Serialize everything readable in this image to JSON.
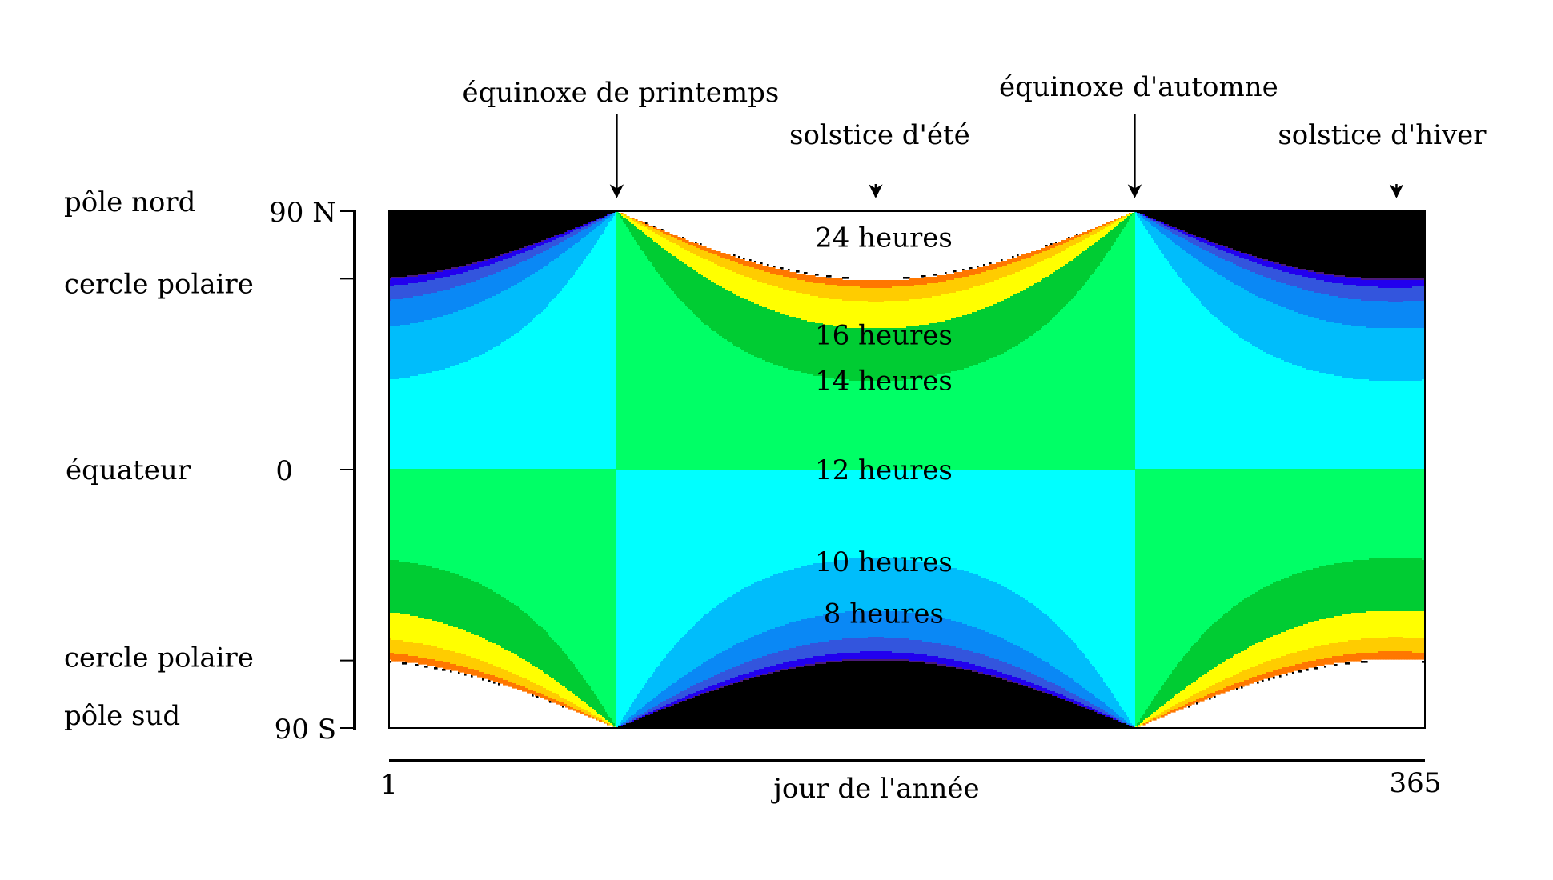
{
  "chart_data": {
    "type": "heatmap",
    "title": "",
    "xlabel": "jour de l'année",
    "ylabel": "",
    "xlim": [
      1,
      365
    ],
    "ylim": [
      -90,
      90
    ],
    "x_tick_labels": {
      "start": "1",
      "end": "365"
    },
    "y_ticks": [
      {
        "value": 90,
        "label": "90 N",
        "name": "pôle nord"
      },
      {
        "value": 66.5,
        "label": "",
        "name": "cercle polaire"
      },
      {
        "value": 0,
        "label": "0",
        "name": "équateur"
      },
      {
        "value": -66.5,
        "label": "",
        "name": "cercle polaire"
      },
      {
        "value": -90,
        "label": "90 S",
        "name": "pôle sud"
      }
    ],
    "events": [
      {
        "day": 81,
        "label": "équinoxe de printemps",
        "kind": "equinox"
      },
      {
        "day": 172,
        "label": "solstice d'été",
        "kind": "solstice"
      },
      {
        "day": 263,
        "label": "équinoxe d'automne",
        "kind": "equinox"
      },
      {
        "day": 355,
        "label": "solstice d'hiver",
        "kind": "solstice"
      }
    ],
    "contour_labels": [
      {
        "text": "24 heures",
        "day": 172,
        "lat": 81
      },
      {
        "text": "16 heures",
        "day": 172,
        "lat": 47
      },
      {
        "text": "14 heures",
        "day": 172,
        "lat": 31
      },
      {
        "text": "12 heures",
        "day": 172,
        "lat": 0
      },
      {
        "text": "10 heures",
        "day": 172,
        "lat": -32
      },
      {
        "text": "8 heures",
        "day": 172,
        "lat": -50
      }
    ],
    "levels_hours": [
      0,
      1,
      2,
      4,
      6,
      8,
      10,
      12,
      14,
      16,
      18,
      20,
      22,
      23,
      24
    ],
    "colors": [
      "#000000",
      "#4b1a7a",
      "#2200ee",
      "#3355dd",
      "#0a88f5",
      "#00bdfb",
      "#00ffff",
      "#00ff66",
      "#00cc33",
      "#ffff00",
      "#ffcc00",
      "#ff7700",
      "#ffffff"
    ],
    "obliquity_deg": 23.44
  }
}
